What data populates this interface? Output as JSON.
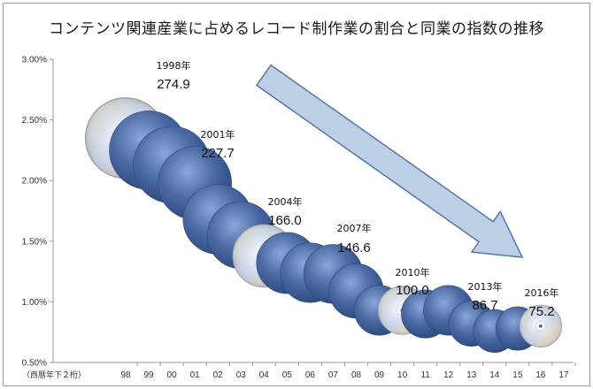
{
  "title": "コンテンツ関連産業に占めるレコード制作業の割合と同業の指数の推移",
  "x_note": "（西暦年下２桁）",
  "chart_data": {
    "type": "scatter",
    "title": "コンテンツ関連産業に占めるレコード制作業の割合と同業の指数の推移",
    "xlabel": "（西暦年下２桁）",
    "ylabel": "",
    "x_tick_labels": [
      "98",
      "99",
      "00",
      "01",
      "02",
      "03",
      "04",
      "05",
      "06",
      "07",
      "08",
      "09",
      "10",
      "11",
      "12",
      "13",
      "14",
      "15",
      "16",
      "17"
    ],
    "y_tick_labels": [
      "0.50%",
      "1.00%",
      "1.50%",
      "2.00%",
      "2.50%",
      "3.00%"
    ],
    "ylim": [
      0.5,
      3.0
    ],
    "series": [
      {
        "years": [
          "98",
          "99",
          "00",
          "01",
          "02",
          "03",
          "04",
          "05",
          "06",
          "07",
          "08",
          "09",
          "10",
          "11",
          "12",
          "13",
          "14",
          "15",
          "16"
        ],
        "share_percent": [
          2.35,
          2.25,
          2.13,
          1.98,
          1.68,
          1.55,
          1.38,
          1.32,
          1.24,
          1.23,
          1.09,
          0.93,
          0.93,
          0.9,
          0.93,
          0.82,
          0.76,
          0.78,
          0.8
        ],
        "index": [
          274.9,
          262,
          250,
          227.7,
          205,
          190,
          166.0,
          158,
          150,
          146.6,
          125,
          105,
          100.0,
          98,
          105,
          86.7,
          78,
          80,
          75.2
        ],
        "disc_marker_years": [
          "98",
          "04",
          "10",
          "16"
        ]
      }
    ],
    "annotations": [
      {
        "year_label": "1998年",
        "value": "274.9",
        "x": "98"
      },
      {
        "year_label": "2001年",
        "value": "227.7",
        "x": "01"
      },
      {
        "year_label": "2004年",
        "value": "166.0",
        "x": "04"
      },
      {
        "year_label": "2007年",
        "value": "146.6",
        "x": "07"
      },
      {
        "year_label": "2010年",
        "value": "100.0",
        "x": "10"
      },
      {
        "year_label": "2013年",
        "value": "86.7",
        "x": "13"
      },
      {
        "year_label": "2016年",
        "value": "75.2",
        "x": "16"
      }
    ],
    "trend_arrow": "down-right",
    "grid": false
  },
  "colors": {
    "bubble": "#3f5f97",
    "bubble_light": "#7d9bd2",
    "arrow_fill": "#b8cce4",
    "arrow_stroke": "#4a6c9b",
    "axis": "#999999"
  }
}
